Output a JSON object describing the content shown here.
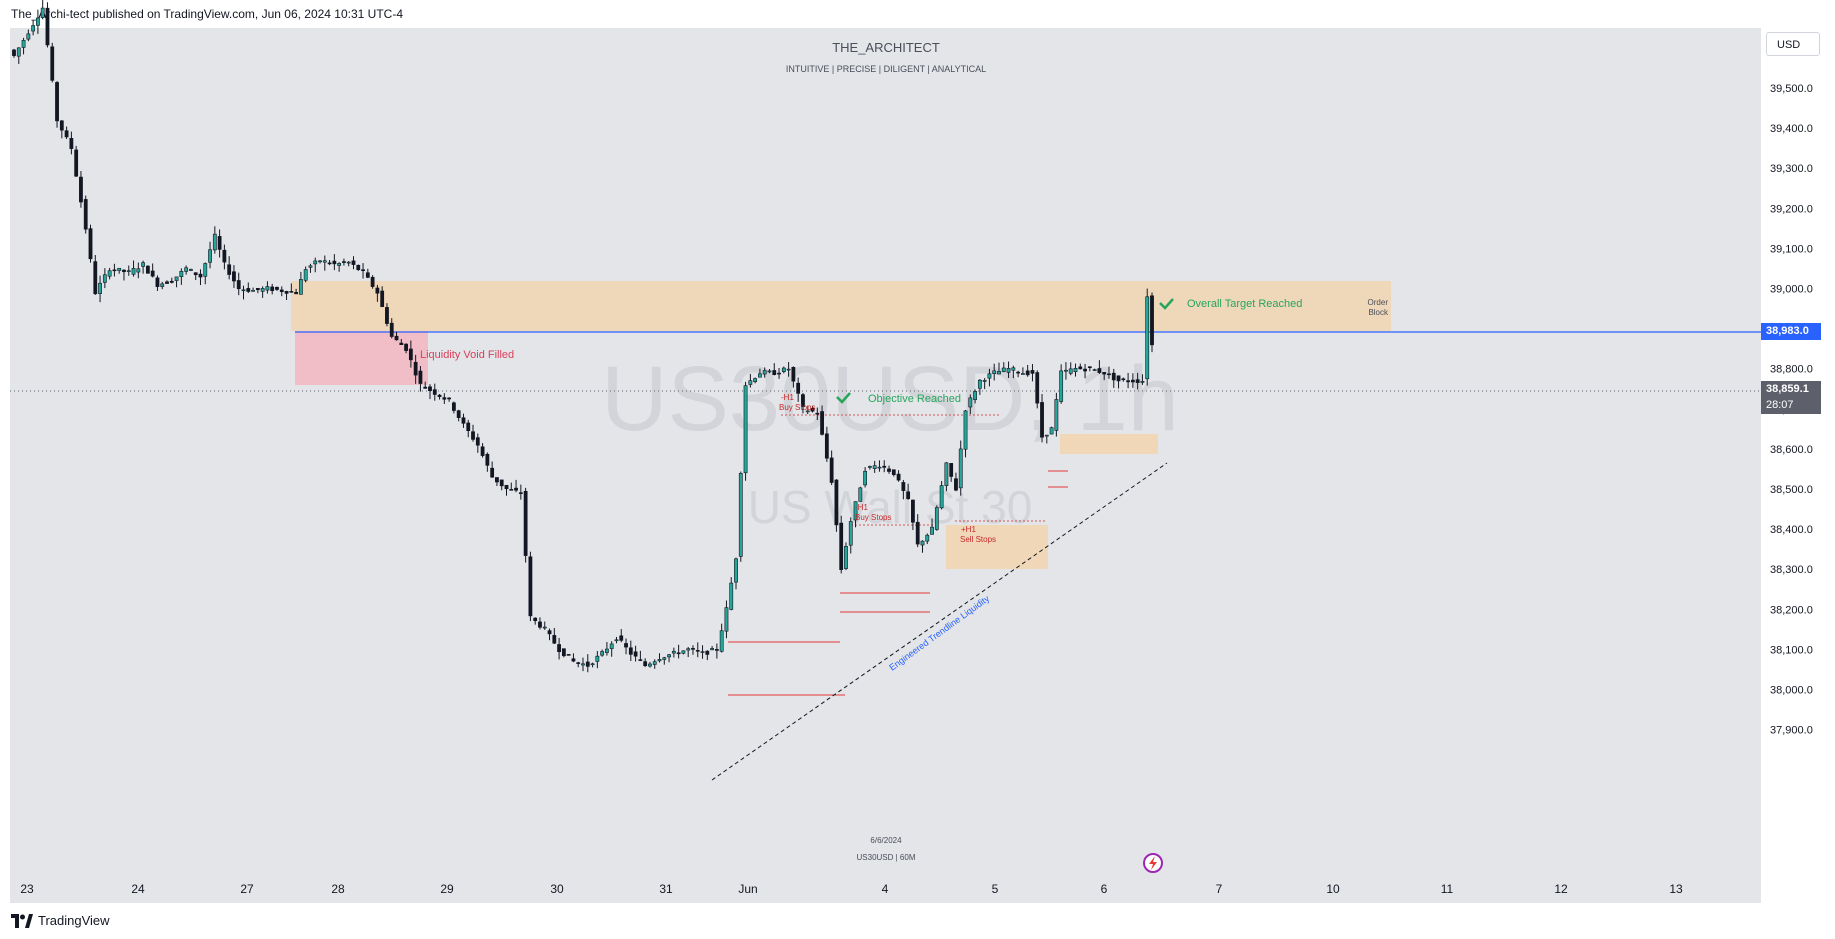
{
  "header": {
    "publisher_text": "The_Archi-tect published on TradingView.com, Jun 06, 2024 10:31 UTC-4"
  },
  "branding": {
    "title": "THE_ARCHITECT",
    "subtitle": "INTUITIVE | PRECISE | DILIGENT | ANALYTICAL",
    "watermark_symbol": "US30USD, 1h",
    "watermark_name": "US Wall St 30",
    "footer_logo": "TradingView",
    "bottom_date": "6/6/2024",
    "bottom_symbol": "US30USD | 60M"
  },
  "axis": {
    "currency_button": "USD",
    "current_price": "38,983.0",
    "last_price": "38,859.1",
    "countdown": "28:07"
  },
  "colors": {
    "background": "#e3e5e9",
    "bull_candle": "#26a69a",
    "bear_candle": "#131722",
    "order_block": "#f1d5b2",
    "liquidity_void": "#f2b8c2",
    "target_line": "#2962ff",
    "check_green": "#26a65b",
    "annotation_red": "#c62828",
    "trendline_label_blue": "#2962ff"
  },
  "annotations": {
    "liquidity_void": "Liquidity Void Filled",
    "overall_target": "Overall Target Reached",
    "objective": "Objective Reached",
    "order_block_1": "Order",
    "order_block_2": "Block",
    "h1_buy_stops_1_a": "-H1",
    "h1_buy_stops_1_b": "Buy Stops",
    "h1_buy_stops_2_a": "-H1",
    "h1_buy_stops_2_b": "Buy Stops",
    "h1_sell_stops_a": "+H1",
    "h1_sell_stops_b": "Sell Stops",
    "trendline": "Engineered Trendline Liquidity"
  },
  "chart_data": {
    "type": "candlestick",
    "symbol": "US30USD",
    "interval": "1h",
    "ylim": [
      37820,
      39620
    ],
    "y_ticks": [
      "39,500.0",
      "39,400.0",
      "39,300.0",
      "39,200.0",
      "39,100.0",
      "39,000.0",
      "38,900.0",
      "38,800.0",
      "38,700.0",
      "38,600.0",
      "38,500.0",
      "38,400.0",
      "38,300.0",
      "38,200.0",
      "38,100.0",
      "38,000.0",
      "37,900.0"
    ],
    "x_labels": [
      "23",
      "24",
      "27",
      "28",
      "29",
      "30",
      "31",
      "Jun",
      "4",
      "5",
      "6",
      "7",
      "10",
      "11",
      "12",
      "13"
    ],
    "current_price": 38983.0,
    "last_price": 38859.1,
    "price_path": [
      [
        0,
        39580
      ],
      [
        6,
        39700
      ],
      [
        9,
        39420
      ],
      [
        12,
        39350
      ],
      [
        15,
        39150
      ],
      [
        17,
        38990
      ],
      [
        20,
        39050
      ],
      [
        24,
        39040
      ],
      [
        27,
        39060
      ],
      [
        30,
        39010
      ],
      [
        33,
        39020
      ],
      [
        36,
        39050
      ],
      [
        39,
        39030
      ],
      [
        42,
        39130
      ],
      [
        44,
        39060
      ],
      [
        47,
        39000
      ],
      [
        50,
        38995
      ],
      [
        53,
        39000
      ],
      [
        56,
        38995
      ],
      [
        59,
        38990
      ],
      [
        61,
        39050
      ],
      [
        64,
        39070
      ],
      [
        67,
        39060
      ],
      [
        70,
        39065
      ],
      [
        73,
        39040
      ],
      [
        76,
        38990
      ],
      [
        79,
        38880
      ],
      [
        82,
        38850
      ],
      [
        85,
        38760
      ],
      [
        88,
        38740
      ],
      [
        91,
        38720
      ],
      [
        94,
        38660
      ],
      [
        97,
        38610
      ],
      [
        100,
        38530
      ],
      [
        103,
        38500
      ],
      [
        106,
        38490
      ],
      [
        108,
        38180
      ],
      [
        111,
        38150
      ],
      [
        114,
        38100
      ],
      [
        117,
        38070
      ],
      [
        120,
        38060
      ],
      [
        123,
        38090
      ],
      [
        126,
        38130
      ],
      [
        129,
        38090
      ],
      [
        132,
        38060
      ],
      [
        135,
        38080
      ],
      [
        138,
        38090
      ],
      [
        141,
        38100
      ],
      [
        144,
        38090
      ],
      [
        147,
        38100
      ],
      [
        149,
        38200
      ],
      [
        151,
        38330
      ],
      [
        153,
        38760
      ],
      [
        156,
        38790
      ],
      [
        159,
        38790
      ],
      [
        162,
        38800
      ],
      [
        165,
        38700
      ],
      [
        168,
        38690
      ],
      [
        171,
        38520
      ],
      [
        173,
        38300
      ],
      [
        175,
        38420
      ],
      [
        178,
        38550
      ],
      [
        181,
        38560
      ],
      [
        184,
        38540
      ],
      [
        187,
        38470
      ],
      [
        189,
        38360
      ],
      [
        192,
        38400
      ],
      [
        195,
        38560
      ],
      [
        197,
        38500
      ],
      [
        199,
        38700
      ],
      [
        202,
        38770
      ],
      [
        205,
        38790
      ],
      [
        208,
        38800
      ],
      [
        211,
        38790
      ],
      [
        213,
        38790
      ],
      [
        215,
        38630
      ],
      [
        217,
        38650
      ],
      [
        219,
        38790
      ],
      [
        222,
        38800
      ],
      [
        225,
        38800
      ],
      [
        228,
        38790
      ],
      [
        231,
        38770
      ],
      [
        234,
        38770
      ],
      [
        236,
        38770
      ],
      [
        237,
        38983
      ],
      [
        238,
        38859
      ]
    ]
  }
}
